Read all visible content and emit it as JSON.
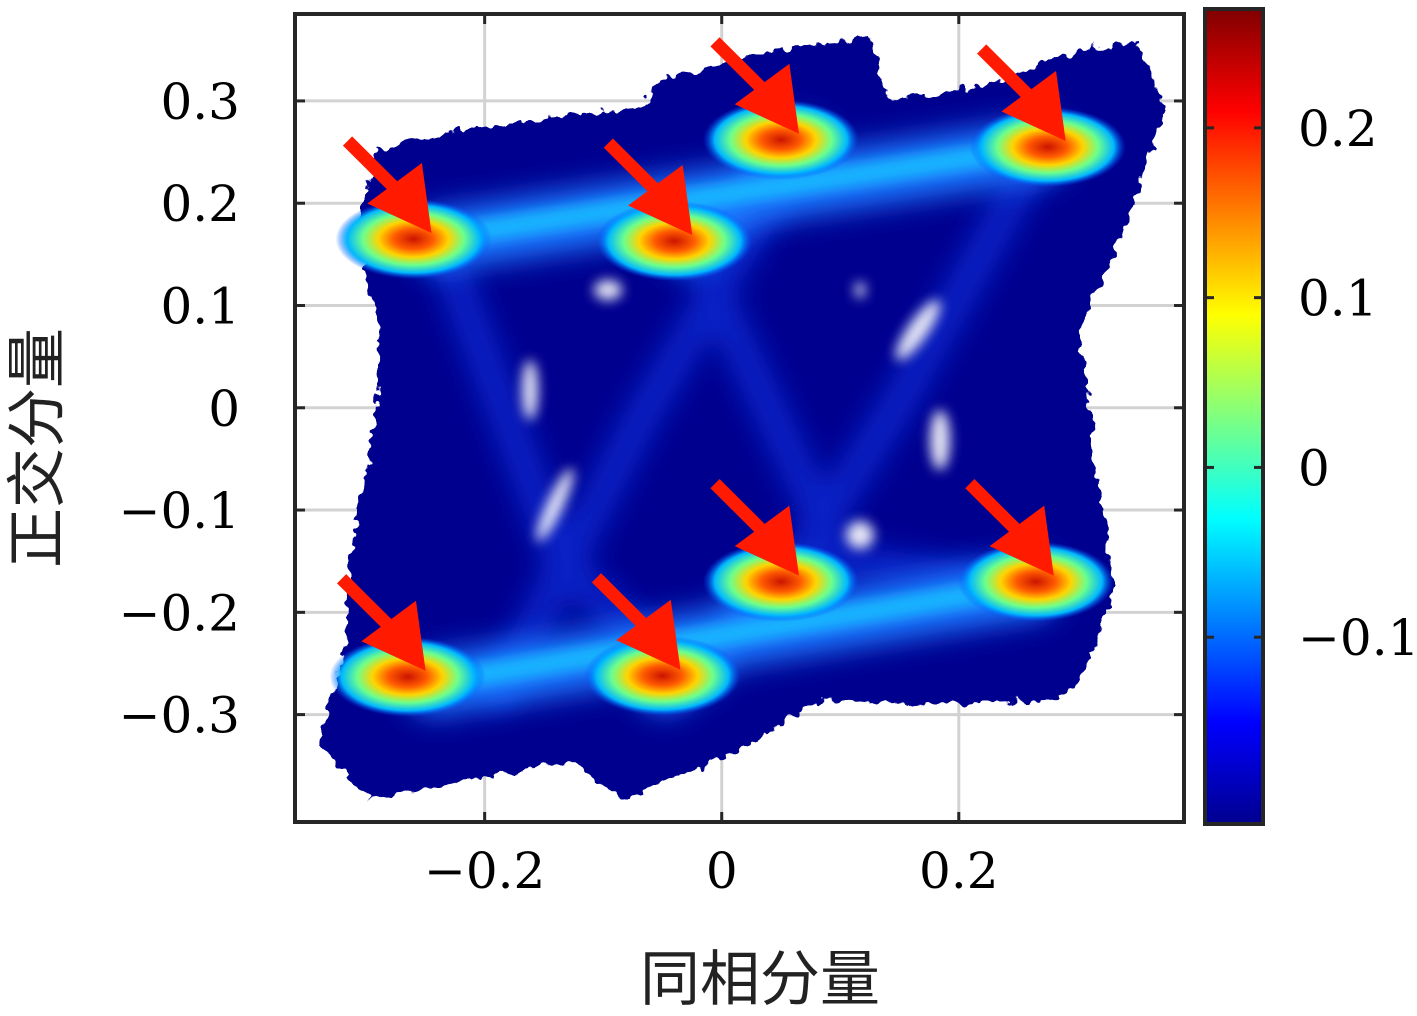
{
  "chart_data": {
    "type": "heatmap",
    "subtype": "constellation-density-map",
    "title": "",
    "xlabel": "同相分量",
    "ylabel": "正交分量",
    "xlim": [
      -0.36,
      0.39
    ],
    "ylim": [
      -0.405,
      0.385
    ],
    "xticks": [
      -0.2,
      0,
      0.2
    ],
    "xtick_labels": [
      "−0.2",
      "0",
      "0.2"
    ],
    "yticks": [
      0.3,
      0.2,
      0.1,
      0,
      -0.1,
      -0.2,
      -0.3
    ],
    "ytick_labels": [
      "0.3",
      "0.2",
      "0.1",
      "0",
      "−0.1",
      "−0.2",
      "−0.3"
    ],
    "grid": true,
    "colormap": "jet",
    "colorbar": {
      "clim": [
        -0.21,
        0.27
      ],
      "ticks": [
        0.2,
        0.1,
        0,
        -0.1
      ],
      "tick_labels": [
        "0.2",
        "0.1",
        "0",
        "−0.1"
      ]
    },
    "constellation_points": [
      {
        "x": -0.26,
        "y": 0.165
      },
      {
        "x": -0.04,
        "y": 0.163
      },
      {
        "x": 0.05,
        "y": 0.262
      },
      {
        "x": 0.275,
        "y": 0.255
      },
      {
        "x": -0.265,
        "y": -0.263
      },
      {
        "x": -0.05,
        "y": -0.262
      },
      {
        "x": 0.05,
        "y": -0.17
      },
      {
        "x": 0.265,
        "y": -0.17
      }
    ],
    "annotations": {
      "type": "arrow",
      "color": "#ff1a00",
      "count": 8
    },
    "colors": {
      "arrow": "#ff1a00",
      "background_density": "#00008f",
      "grid": "#d2d2d2",
      "frame": "#262626"
    }
  }
}
